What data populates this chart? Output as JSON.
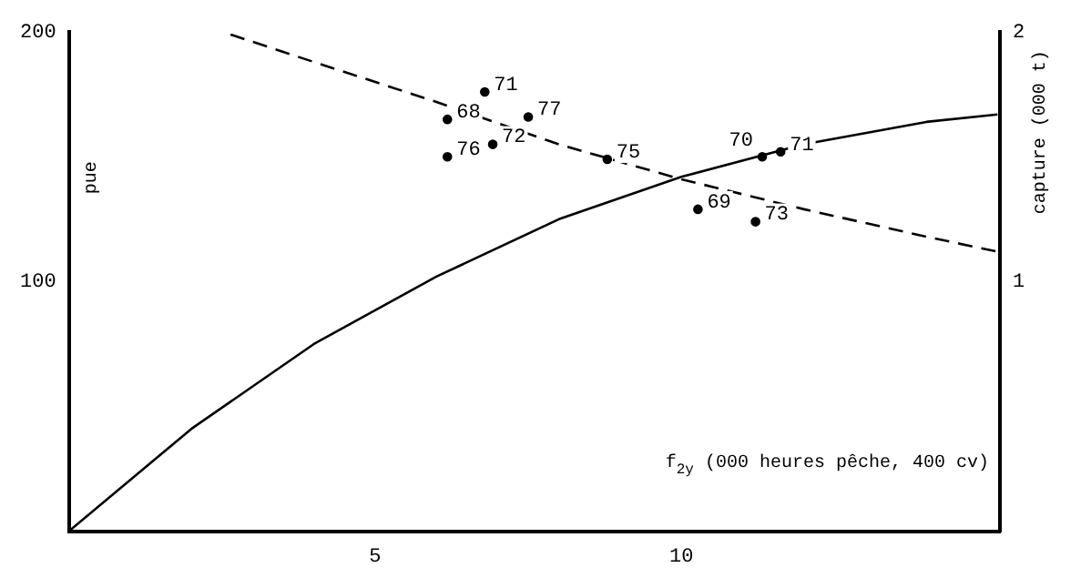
{
  "chart_data": {
    "type": "line",
    "xlabel": "f$_{2y}$ (000 heures pêche, 400 cv)",
    "ylabel": "pue",
    "y2label": "capture (000 t)",
    "xlim": [
      0,
      15.2
    ],
    "xticks": [
      5,
      10
    ],
    "ylim": [
      0,
      200
    ],
    "yticks": [
      100,
      200
    ],
    "y2lim": [
      0,
      2
    ],
    "y2ticks": [
      1,
      2
    ],
    "grid": false,
    "series": [
      {
        "type": "line",
        "line_style": "dashed",
        "color": "#000000",
        "x": [
          2.64,
          4,
          6,
          8,
          10,
          12,
          14,
          15.16
        ],
        "values": [
          199,
          188,
          172,
          155,
          141,
          129,
          118,
          112
        ]
      },
      {
        "type": "line",
        "axis": "y2",
        "line_style": "solid",
        "color": "#000000",
        "x": [
          0,
          2,
          4,
          6,
          8,
          10,
          12,
          14,
          15.16
        ],
        "values": [
          0,
          0.41,
          0.75,
          1.02,
          1.25,
          1.42,
          1.55,
          1.64,
          1.67
        ]
      },
      {
        "type": "scatter",
        "marker": "circle",
        "color": "#000000",
        "x": [
          6.18,
          6.79,
          7.5,
          6.18,
          6.92,
          8.79,
          11.32,
          11.62,
          10.27,
          11.21
        ],
        "values": [
          165,
          176,
          166,
          150,
          155,
          149,
          150,
          152,
          129,
          124
        ]
      }
    ],
    "annotations": [
      {
        "text": "68",
        "x": 6.18,
        "y": 165
      },
      {
        "text": "71",
        "x": 6.79,
        "y": 176
      },
      {
        "text": "77",
        "x": 7.5,
        "y": 166
      },
      {
        "text": "76",
        "x": 6.18,
        "y": 150
      },
      {
        "text": "72",
        "x": 6.92,
        "y": 155
      },
      {
        "text": "75",
        "x": 8.79,
        "y": 149
      },
      {
        "text": "70",
        "x": 11.32,
        "y": 150
      },
      {
        "text": "71",
        "x": 11.62,
        "y": 152
      },
      {
        "text": "69",
        "x": 10.27,
        "y": 129
      },
      {
        "text": "73",
        "x": 11.21,
        "y": 124
      }
    ]
  }
}
